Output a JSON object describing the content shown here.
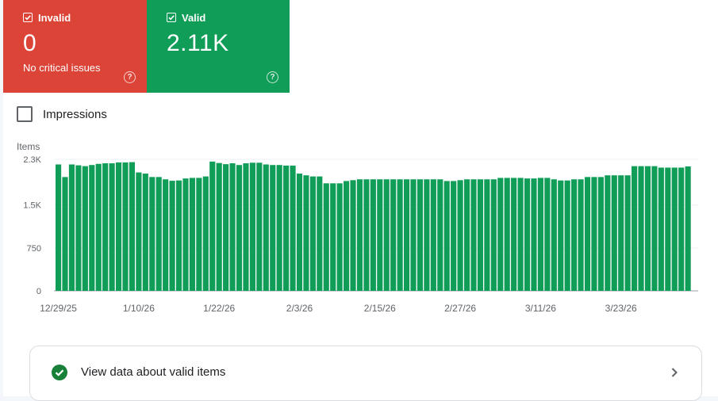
{
  "cards": {
    "invalid": {
      "label": "Invalid",
      "value": "0",
      "subtitle": "No critical issues",
      "color": "#dc4437",
      "help_glyph": "?"
    },
    "valid": {
      "label": "Valid",
      "value": "2.11K",
      "color": "#109d58",
      "help_glyph": "?"
    }
  },
  "impressions": {
    "label": "Impressions",
    "checked": false
  },
  "chart_data": {
    "type": "bar",
    "ylabel": "Items",
    "yticks": [
      "2.3K",
      "1.5K",
      "750",
      "0"
    ],
    "ylim": [
      0,
      2300
    ],
    "xticks": [
      "12/29/25",
      "1/10/26",
      "1/22/26",
      "2/3/26",
      "2/15/26",
      "2/27/26",
      "3/11/26",
      "3/23/26"
    ],
    "grid": true,
    "color": "#109d58",
    "values": [
      2210,
      1990,
      2210,
      2195,
      2180,
      2200,
      2220,
      2230,
      2230,
      2245,
      2245,
      2250,
      2070,
      2050,
      1990,
      1990,
      1950,
      1925,
      1930,
      1965,
      1975,
      1975,
      2000,
      2260,
      2235,
      2215,
      2230,
      2200,
      2230,
      2240,
      2240,
      2210,
      2200,
      2200,
      2190,
      2190,
      2050,
      2020,
      2000,
      2000,
      1880,
      1880,
      1880,
      1920,
      1935,
      1950,
      1950,
      1950,
      1950,
      1950,
      1950,
      1950,
      1950,
      1950,
      1950,
      1950,
      1950,
      1950,
      1920,
      1920,
      1935,
      1950,
      1950,
      1950,
      1950,
      1950,
      1975,
      1975,
      1975,
      1975,
      1965,
      1965,
      1975,
      1975,
      1950,
      1930,
      1930,
      1950,
      1950,
      1990,
      1990,
      1990,
      2020,
      2020,
      2020,
      2020,
      2180,
      2180,
      2180,
      2180,
      2155,
      2155,
      2155,
      2155,
      2175
    ]
  },
  "footer": {
    "label": "View data about valid items"
  }
}
